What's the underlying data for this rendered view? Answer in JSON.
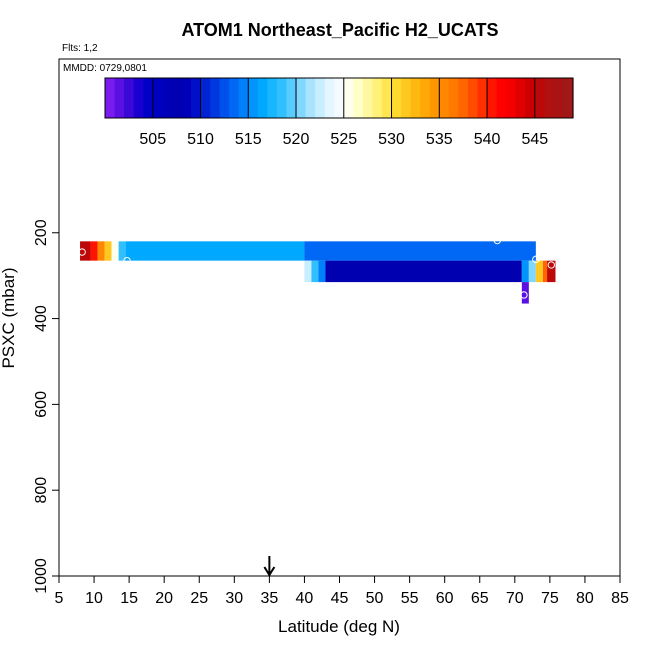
{
  "chart_data": {
    "type": "heatmap",
    "title": "ATOM1 Northeast_Pacific H2_UCATS",
    "subtitle_flights": "Flts: 1,2",
    "subtitle_dates": "MMDD: 0729,0801",
    "xlabel": "Latitude (deg N)",
    "ylabel": "PSXC (mbar)",
    "xlim": [
      5,
      85
    ],
    "ylim": [
      1000,
      0
    ],
    "x_ticks": [
      "5",
      "10",
      "15",
      "20",
      "25",
      "30",
      "35",
      "40",
      "45",
      "50",
      "55",
      "60",
      "65",
      "70",
      "75",
      "80",
      "85"
    ],
    "y_ticks": [
      "200",
      "400",
      "600",
      "800",
      "1000"
    ],
    "marker_arrow_latitude": 35,
    "colorbar": {
      "min": 500,
      "max": 549,
      "tick_labels": [
        "505",
        "510",
        "515",
        "520",
        "525",
        "530",
        "535",
        "540",
        "545"
      ],
      "colors": [
        "#7a1cf0",
        "#5a10e0",
        "#3a08d8",
        "#1a00d0",
        "#0000c8",
        "#0000c0",
        "#0000b8",
        "#0000b0",
        "#0000b8",
        "#0010c8",
        "#0024d4",
        "#0038e0",
        "#0050ec",
        "#0068f4",
        "#0080fa",
        "#0094fc",
        "#00a8ff",
        "#18b6ff",
        "#30c0ff",
        "#58ccff",
        "#80d8ff",
        "#a8e4ff",
        "#c8eeff",
        "#e4f6ff",
        "#f4fbff",
        "#ffffee",
        "#ffffc8",
        "#fff8a0",
        "#fff078",
        "#ffe650",
        "#ffd830",
        "#ffc820",
        "#ffb810",
        "#ffa808",
        "#ff9800",
        "#ff8800",
        "#ff7800",
        "#ff6600",
        "#ff4c00",
        "#ff3000",
        "#ff1400",
        "#ff0000",
        "#f40000",
        "#e00000",
        "#cc0000",
        "#bc0808",
        "#b01010",
        "#a81414",
        "#a01818"
      ]
    },
    "cells": [
      {
        "lat_min": 8,
        "lat_max": 9.5,
        "p_min": 220,
        "p_max": 265,
        "value": 546
      },
      {
        "lat_min": 9.5,
        "lat_max": 10.5,
        "p_min": 220,
        "p_max": 265,
        "value": 541
      },
      {
        "lat_min": 10.5,
        "lat_max": 11.5,
        "p_min": 220,
        "p_max": 265,
        "value": 536
      },
      {
        "lat_min": 11.5,
        "lat_max": 12.5,
        "p_min": 220,
        "p_max": 265,
        "value": 532
      },
      {
        "lat_min": 12.5,
        "lat_max": 13.5,
        "p_min": 220,
        "p_max": 265,
        "value": 526
      },
      {
        "lat_min": 13.5,
        "lat_max": 14.5,
        "p_min": 220,
        "p_max": 265,
        "value": 518
      },
      {
        "lat_min": 14.5,
        "lat_max": 40,
        "p_min": 220,
        "p_max": 265,
        "value": 516
      },
      {
        "lat_min": 40,
        "lat_max": 73,
        "p_min": 220,
        "p_max": 265,
        "value": 513
      },
      {
        "lat_min": 40,
        "lat_max": 41,
        "p_min": 265,
        "p_max": 315,
        "value": 522
      },
      {
        "lat_min": 41,
        "lat_max": 42,
        "p_min": 265,
        "p_max": 315,
        "value": 518
      },
      {
        "lat_min": 42,
        "lat_max": 43,
        "p_min": 265,
        "p_max": 315,
        "value": 514
      },
      {
        "lat_min": 43,
        "lat_max": 71,
        "p_min": 265,
        "p_max": 315,
        "value": 507
      },
      {
        "lat_min": 71,
        "lat_max": 72,
        "p_min": 265,
        "p_max": 315,
        "value": 515
      },
      {
        "lat_min": 72,
        "lat_max": 73,
        "p_min": 265,
        "p_max": 315,
        "value": 520
      },
      {
        "lat_min": 73,
        "lat_max": 74,
        "p_min": 265,
        "p_max": 315,
        "value": 532
      },
      {
        "lat_min": 74,
        "lat_max": 74.6,
        "p_min": 265,
        "p_max": 315,
        "value": 538
      },
      {
        "lat_min": 74.6,
        "lat_max": 75.8,
        "p_min": 265,
        "p_max": 315,
        "value": 546
      },
      {
        "lat_min": 71,
        "lat_max": 72,
        "p_min": 315,
        "p_max": 365,
        "value": 501
      }
    ],
    "points": [
      {
        "lat": 8.3,
        "p": 245
      },
      {
        "lat": 14.7,
        "p": 265
      },
      {
        "lat": 67.5,
        "p": 218
      },
      {
        "lat": 73,
        "p": 262
      },
      {
        "lat": 75.2,
        "p": 275
      },
      {
        "lat": 71.3,
        "p": 345
      }
    ]
  }
}
